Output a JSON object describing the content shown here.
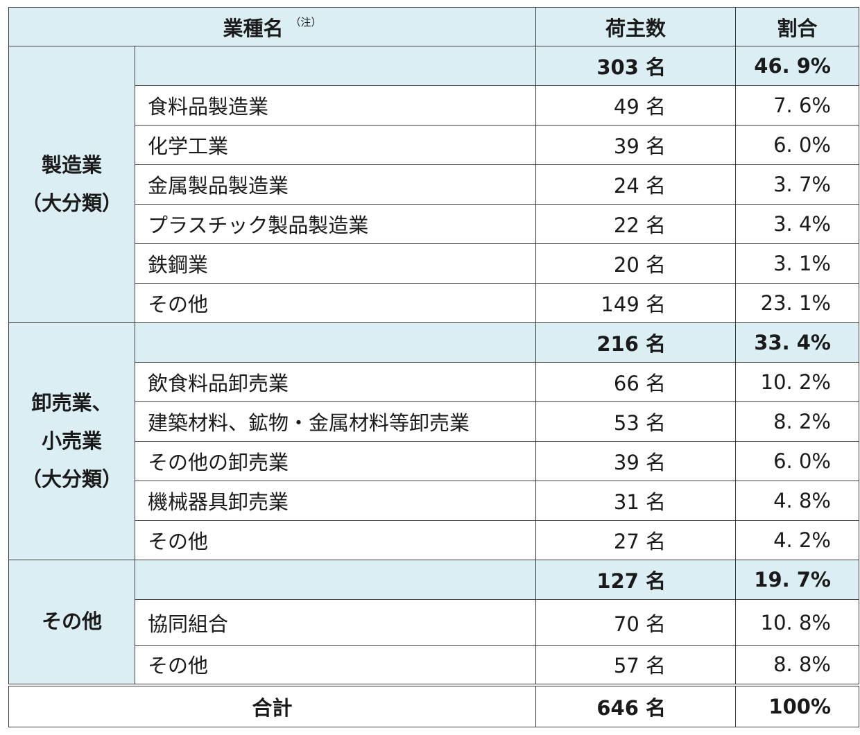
{
  "header": {
    "industry": "業種名",
    "note": "（注）",
    "count": "荷主数",
    "ratio": "割合"
  },
  "groups": [
    {
      "label_lines": [
        "製造業",
        "（大分類）"
      ],
      "subtotal": {
        "count": "303 名",
        "ratio": "46. 9%"
      },
      "rows": [
        {
          "name": "食料品製造業",
          "count": "49 名",
          "ratio": "7. 6%"
        },
        {
          "name": "化学工業",
          "count": "39 名",
          "ratio": "6. 0%"
        },
        {
          "name": "金属製品製造業",
          "count": "24 名",
          "ratio": "3. 7%"
        },
        {
          "name": "プラスチック製品製造業",
          "count": "22 名",
          "ratio": "3. 4%"
        },
        {
          "name": "鉄鋼業",
          "count": "20 名",
          "ratio": "3. 1%"
        },
        {
          "name": "その他",
          "count": "149 名",
          "ratio": "23. 1%"
        }
      ]
    },
    {
      "label_lines": [
        "卸売業、",
        "小売業",
        "（大分類）"
      ],
      "subtotal": {
        "count": "216 名",
        "ratio": "33. 4%"
      },
      "rows": [
        {
          "name": "飲食料品卸売業",
          "count": "66 名",
          "ratio": "10. 2%"
        },
        {
          "name": "建築材料、鉱物・金属材料等卸売業",
          "count": "53 名",
          "ratio": "8. 2%"
        },
        {
          "name": "その他の卸売業",
          "count": "39 名",
          "ratio": "6. 0%"
        },
        {
          "name": "機械器具卸売業",
          "count": "31 名",
          "ratio": "4. 8%"
        },
        {
          "name": "その他",
          "count": "27 名",
          "ratio": "4. 2%"
        }
      ]
    },
    {
      "label_lines": [
        "その他"
      ],
      "subtotal": {
        "count": "127 名",
        "ratio": "19. 7%"
      },
      "rows": [
        {
          "name": "協同組合",
          "count": "70 名",
          "ratio": "10. 8%"
        },
        {
          "name": "その他",
          "count": "57 名",
          "ratio": "8. 8%"
        }
      ]
    }
  ],
  "total": {
    "label": "合計",
    "count": "646 名",
    "ratio": "100%"
  },
  "colors": {
    "header_bg": "#daeef3",
    "border": "#3a3a3a"
  }
}
